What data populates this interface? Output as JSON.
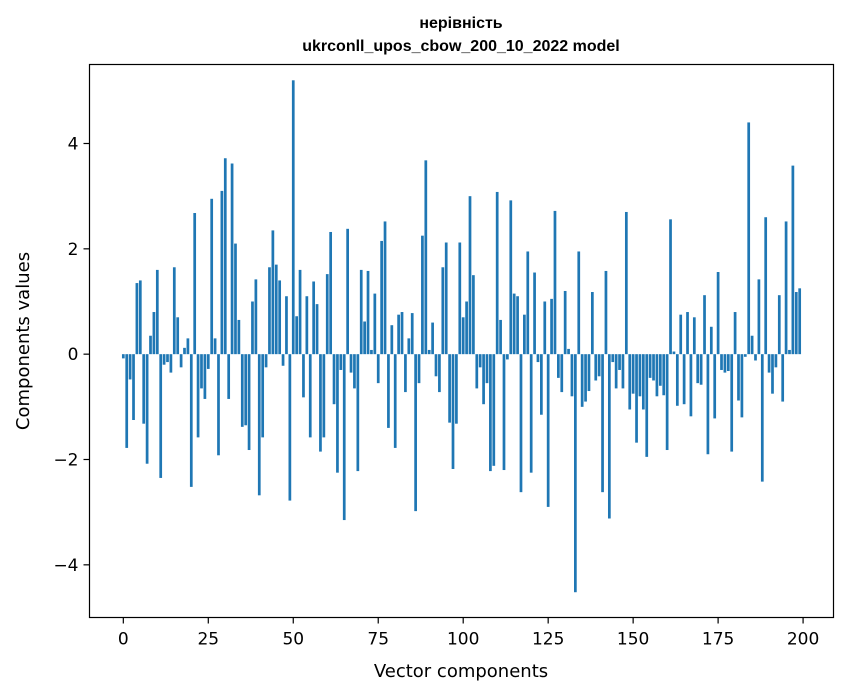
{
  "chart_data": {
    "type": "bar",
    "title": "нерівність",
    "subtitle": "ukrconll_upos_cbow_200_10_2022 model",
    "xlabel": "Vector components",
    "ylabel": "Components values",
    "xlim": [
      -9.95,
      208.95
    ],
    "ylim": [
      -5.0,
      5.5
    ],
    "xticks": [
      0,
      25,
      50,
      75,
      100,
      125,
      150,
      175,
      200
    ],
    "xtick_labels": [
      "0",
      "25",
      "50",
      "75",
      "100",
      "125",
      "150",
      "175",
      "200"
    ],
    "yticks": [
      -4,
      -2,
      0,
      2,
      4
    ],
    "ytick_labels": [
      "−4",
      "−2",
      "0",
      "2",
      "4"
    ],
    "bar_color": "#1f77b4",
    "grid": false,
    "legend": "none",
    "x": [
      0,
      1,
      2,
      3,
      4,
      5,
      6,
      7,
      8,
      9,
      10,
      11,
      12,
      13,
      14,
      15,
      16,
      17,
      18,
      19,
      20,
      21,
      22,
      23,
      24,
      25,
      26,
      27,
      28,
      29,
      30,
      31,
      32,
      33,
      34,
      35,
      36,
      37,
      38,
      39,
      40,
      41,
      42,
      43,
      44,
      45,
      46,
      47,
      48,
      49,
      50,
      51,
      52,
      53,
      54,
      55,
      56,
      57,
      58,
      59,
      60,
      61,
      62,
      63,
      64,
      65,
      66,
      67,
      68,
      69,
      70,
      71,
      72,
      73,
      74,
      75,
      76,
      77,
      78,
      79,
      80,
      81,
      82,
      83,
      84,
      85,
      86,
      87,
      88,
      89,
      90,
      91,
      92,
      93,
      94,
      95,
      96,
      97,
      98,
      99,
      100,
      101,
      102,
      103,
      104,
      105,
      106,
      107,
      108,
      109,
      110,
      111,
      112,
      113,
      114,
      115,
      116,
      117,
      118,
      119,
      120,
      121,
      122,
      123,
      124,
      125,
      126,
      127,
      128,
      129,
      130,
      131,
      132,
      133,
      134,
      135,
      136,
      137,
      138,
      139,
      140,
      141,
      142,
      143,
      144,
      145,
      146,
      147,
      148,
      149,
      150,
      151,
      152,
      153,
      154,
      155,
      156,
      157,
      158,
      159,
      160,
      161,
      162,
      163,
      164,
      165,
      166,
      167,
      168,
      169,
      170,
      171,
      172,
      173,
      174,
      175,
      176,
      177,
      178,
      179,
      180,
      181,
      182,
      183,
      184,
      185,
      186,
      187,
      188,
      189,
      190,
      191,
      192,
      193,
      194,
      195,
      196,
      197,
      198,
      199
    ],
    "values": [
      -0.08,
      -1.78,
      -0.48,
      -1.25,
      1.35,
      1.4,
      -1.32,
      -2.08,
      0.35,
      0.8,
      1.6,
      -2.35,
      -0.2,
      -0.15,
      -0.35,
      1.65,
      0.7,
      -0.25,
      0.12,
      0.3,
      -2.52,
      2.68,
      -1.58,
      -0.65,
      -0.85,
      -0.28,
      2.95,
      0.3,
      -1.92,
      3.1,
      3.72,
      -0.85,
      3.62,
      2.1,
      0.65,
      -1.38,
      -1.35,
      -1.82,
      1.0,
      1.42,
      -2.68,
      -1.58,
      -0.25,
      1.65,
      2.35,
      1.7,
      1.4,
      -0.22,
      1.1,
      -2.78,
      5.2,
      0.72,
      1.6,
      -0.82,
      1.1,
      -1.58,
      1.38,
      0.95,
      -1.85,
      -1.58,
      1.52,
      2.32,
      -0.95,
      -2.25,
      -0.3,
      -3.15,
      2.38,
      -0.35,
      -0.65,
      -2.22,
      1.6,
      0.62,
      1.58,
      0.08,
      1.15,
      -0.55,
      2.15,
      2.52,
      -1.4,
      0.55,
      -1.78,
      0.75,
      0.8,
      -0.72,
      0.3,
      0.78,
      -2.98,
      -0.55,
      2.25,
      3.68,
      0.08,
      0.6,
      -0.42,
      -0.72,
      1.65,
      2.12,
      -1.3,
      -2.18,
      -1.32,
      2.12,
      0.7,
      1.0,
      3.0,
      1.5,
      -0.65,
      -0.25,
      -0.95,
      -0.55,
      -2.22,
      -2.12,
      3.08,
      0.65,
      -2.2,
      -0.1,
      2.92,
      1.15,
      1.1,
      -2.62,
      0.75,
      1.95,
      -2.25,
      1.55,
      -0.15,
      -1.15,
      1.0,
      -2.9,
      1.05,
      2.72,
      -0.45,
      -0.72,
      1.2,
      0.1,
      -0.8,
      -4.52,
      1.95,
      -1.0,
      -0.9,
      -0.7,
      1.18,
      -0.5,
      -0.42,
      -2.62,
      1.58,
      -3.12,
      -0.15,
      -0.65,
      -0.3,
      -0.65,
      2.7,
      -1.05,
      -0.75,
      -1.68,
      -0.8,
      -1.05,
      -1.95,
      -0.45,
      -0.5,
      -0.8,
      -0.6,
      -0.78,
      -1.82,
      2.56,
      0.05,
      -0.98,
      0.75,
      -0.95,
      0.8,
      -1.18,
      0.7,
      -0.55,
      -0.58,
      1.12,
      -1.9,
      0.52,
      -1.22,
      1.56,
      -0.3,
      -0.35,
      -0.32,
      -1.85,
      0.8,
      -0.88,
      -1.2,
      -0.05,
      4.4,
      0.35,
      -0.12,
      1.42,
      -2.42,
      2.6,
      -0.35,
      -0.75,
      -0.25,
      1.12,
      -0.9,
      2.52,
      0.08,
      3.58,
      1.18,
      1.25
    ]
  }
}
